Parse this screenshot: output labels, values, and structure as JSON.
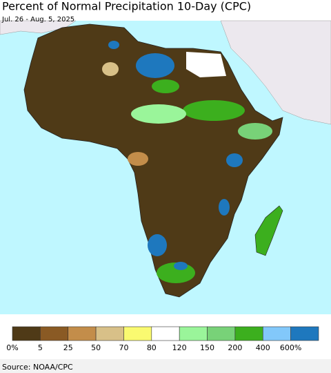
{
  "title": "Percent of Normal Precipitation 10-Day (CPC)",
  "subtitle": "Jul. 26 - Aug. 5, 2025",
  "legend": {
    "colors": [
      "#4f3a17",
      "#8a5a24",
      "#c38d4a",
      "#d8c088",
      "#fafa70",
      "#ffffff",
      "#9af59a",
      "#78d278",
      "#3caf1e",
      "#82c8fa",
      "#1e78be"
    ],
    "labels": [
      "0%",
      "5",
      "25",
      "50",
      "70",
      "80",
      "120",
      "150",
      "200",
      "400",
      "600%"
    ]
  },
  "source": "Source: NOAA/CPC"
}
